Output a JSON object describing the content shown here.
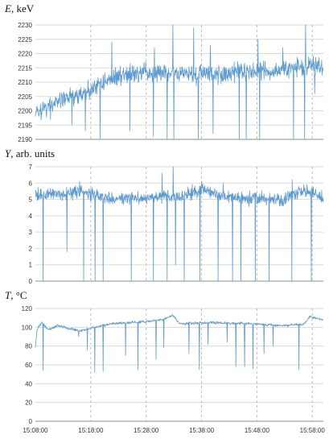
{
  "chart_data": [
    {
      "type": "line",
      "title_var": "E",
      "title_rest": ", keV",
      "ylim": [
        2190,
        2230
      ],
      "yticks": [
        2190,
        2195,
        2200,
        2205,
        2210,
        2215,
        2220,
        2225,
        2230
      ],
      "xlim_minutes": [
        0,
        52
      ],
      "x_vlines_minutes": [
        10,
        20,
        30,
        40,
        50
      ],
      "grid": true,
      "series": [
        {
          "color": "#5b9bd5",
          "trend": [
            [
              0,
              2199
            ],
            [
              2,
              2201
            ],
            [
              5,
              2204
            ],
            [
              9,
              2206
            ],
            [
              12,
              2210
            ],
            [
              16,
              2213
            ],
            [
              24,
              2213
            ],
            [
              34,
              2213
            ],
            [
              42,
              2214
            ],
            [
              48,
              2215
            ],
            [
              50,
              2216
            ],
            [
              52,
              2215
            ]
          ],
          "noise": 2.3,
          "spikes_up": [
            [
              13.8,
              2224
            ],
            [
              21.5,
              2222
            ],
            [
              24.8,
              2230
            ],
            [
              28.6,
              2229
            ],
            [
              31.6,
              2223
            ],
            [
              40.2,
              2225
            ],
            [
              44.7,
              2222
            ],
            [
              48.8,
              2230
            ]
          ],
          "dips": [
            [
              2.7,
              2197
            ],
            [
              6.6,
              2195
            ],
            [
              9.0,
              2193
            ],
            [
              11.7,
              2190
            ],
            [
              17.1,
              2193
            ],
            [
              21.3,
              2191
            ],
            [
              23.8,
              2190
            ],
            [
              25.0,
              2190
            ],
            [
              29.4,
              2190
            ],
            [
              32.1,
              2192
            ],
            [
              36.8,
              2190
            ],
            [
              38.1,
              2190
            ],
            [
              40.5,
              2190
            ],
            [
              46.6,
              2190
            ],
            [
              48.6,
              2190
            ],
            [
              50.4,
              2206
            ]
          ]
        }
      ]
    },
    {
      "type": "line",
      "title_var": "Y",
      "title_rest": ", arb. units",
      "ylim": [
        0,
        7
      ],
      "yticks": [
        0,
        1,
        2,
        3,
        4,
        5,
        6,
        7
      ],
      "xlim_minutes": [
        0,
        52
      ],
      "x_vlines_minutes": [
        10,
        20,
        30,
        40,
        50
      ],
      "grid": true,
      "series": [
        {
          "color": "#5b9bd5",
          "trend": [
            [
              0,
              5.3
            ],
            [
              5,
              5.3
            ],
            [
              8,
              5.5
            ],
            [
              12,
              5.1
            ],
            [
              20,
              5.1
            ],
            [
              27,
              5.2
            ],
            [
              30,
              5.6
            ],
            [
              35,
              5.1
            ],
            [
              45,
              5.0
            ],
            [
              48,
              5.6
            ],
            [
              52,
              5.1
            ]
          ],
          "noise": 0.28,
          "spikes_up": [
            [
              8.0,
              6.1
            ],
            [
              22.9,
              6.6
            ],
            [
              24.9,
              7.0
            ],
            [
              30.0,
              6.1
            ],
            [
              33.9,
              6.0
            ],
            [
              46.4,
              6.2
            ]
          ],
          "dips": [
            [
              1.4,
              0.0
            ],
            [
              5.7,
              1.8
            ],
            [
              8.7,
              0.0
            ],
            [
              10.8,
              0.0
            ],
            [
              12.2,
              0.0
            ],
            [
              17.3,
              0.0
            ],
            [
              21.3,
              0.0
            ],
            [
              23.8,
              0.0
            ],
            [
              25.3,
              1.0
            ],
            [
              26.9,
              0.0
            ],
            [
              29.7,
              0.0
            ],
            [
              33.0,
              0.0
            ],
            [
              35.6,
              0.0
            ],
            [
              37.1,
              0.0
            ],
            [
              39.7,
              0.0
            ],
            [
              42.2,
              0.0
            ],
            [
              46.3,
              0.0
            ],
            [
              49.8,
              0.0
            ]
          ]
        }
      ]
    },
    {
      "type": "line",
      "title_var": "T",
      "title_rest": ", °C",
      "ylim": [
        0,
        120
      ],
      "yticks": [
        0,
        20,
        40,
        60,
        80,
        100,
        120
      ],
      "xlim_minutes": [
        0,
        52
      ],
      "xticks": [
        "15:08:00",
        "15:18:00",
        "15:28:00",
        "15:38:00",
        "15:48:00",
        "15:58:00"
      ],
      "x_vlines_minutes": [
        10,
        20,
        30,
        40,
        50
      ],
      "grid": true,
      "series": [
        {
          "color": "#5b9bd5",
          "trend": [
            [
              0,
              78
            ],
            [
              0.3,
              98
            ],
            [
              1.2,
              105
            ],
            [
              2.3,
              97
            ],
            [
              4.0,
              102
            ],
            [
              8.0,
              96
            ],
            [
              10.0,
              99
            ],
            [
              14.0,
              104
            ],
            [
              20.0,
              106
            ],
            [
              23.0,
              108
            ],
            [
              24.8,
              113
            ],
            [
              26.0,
              104
            ],
            [
              32.0,
              105
            ],
            [
              38.0,
              104
            ],
            [
              44.0,
              102
            ],
            [
              48.5,
              103
            ],
            [
              49.5,
              111
            ],
            [
              52,
              108
            ]
          ],
          "noise": 1.0,
          "spikes_up": [],
          "dips": [
            [
              1.4,
              54
            ],
            [
              7.8,
              90
            ],
            [
              9.4,
              76
            ],
            [
              10.7,
              52
            ],
            [
              12.2,
              53
            ],
            [
              16.3,
              70
            ],
            [
              18.5,
              55
            ],
            [
              21.8,
              66
            ],
            [
              23.2,
              78
            ],
            [
              27.7,
              72
            ],
            [
              29.6,
              55
            ],
            [
              31.2,
              82
            ],
            [
              34.6,
              84
            ],
            [
              36.2,
              58
            ],
            [
              37.8,
              58
            ],
            [
              39.3,
              56
            ],
            [
              41.3,
              72
            ],
            [
              42.9,
              80
            ],
            [
              47.6,
              55
            ]
          ]
        }
      ]
    }
  ]
}
